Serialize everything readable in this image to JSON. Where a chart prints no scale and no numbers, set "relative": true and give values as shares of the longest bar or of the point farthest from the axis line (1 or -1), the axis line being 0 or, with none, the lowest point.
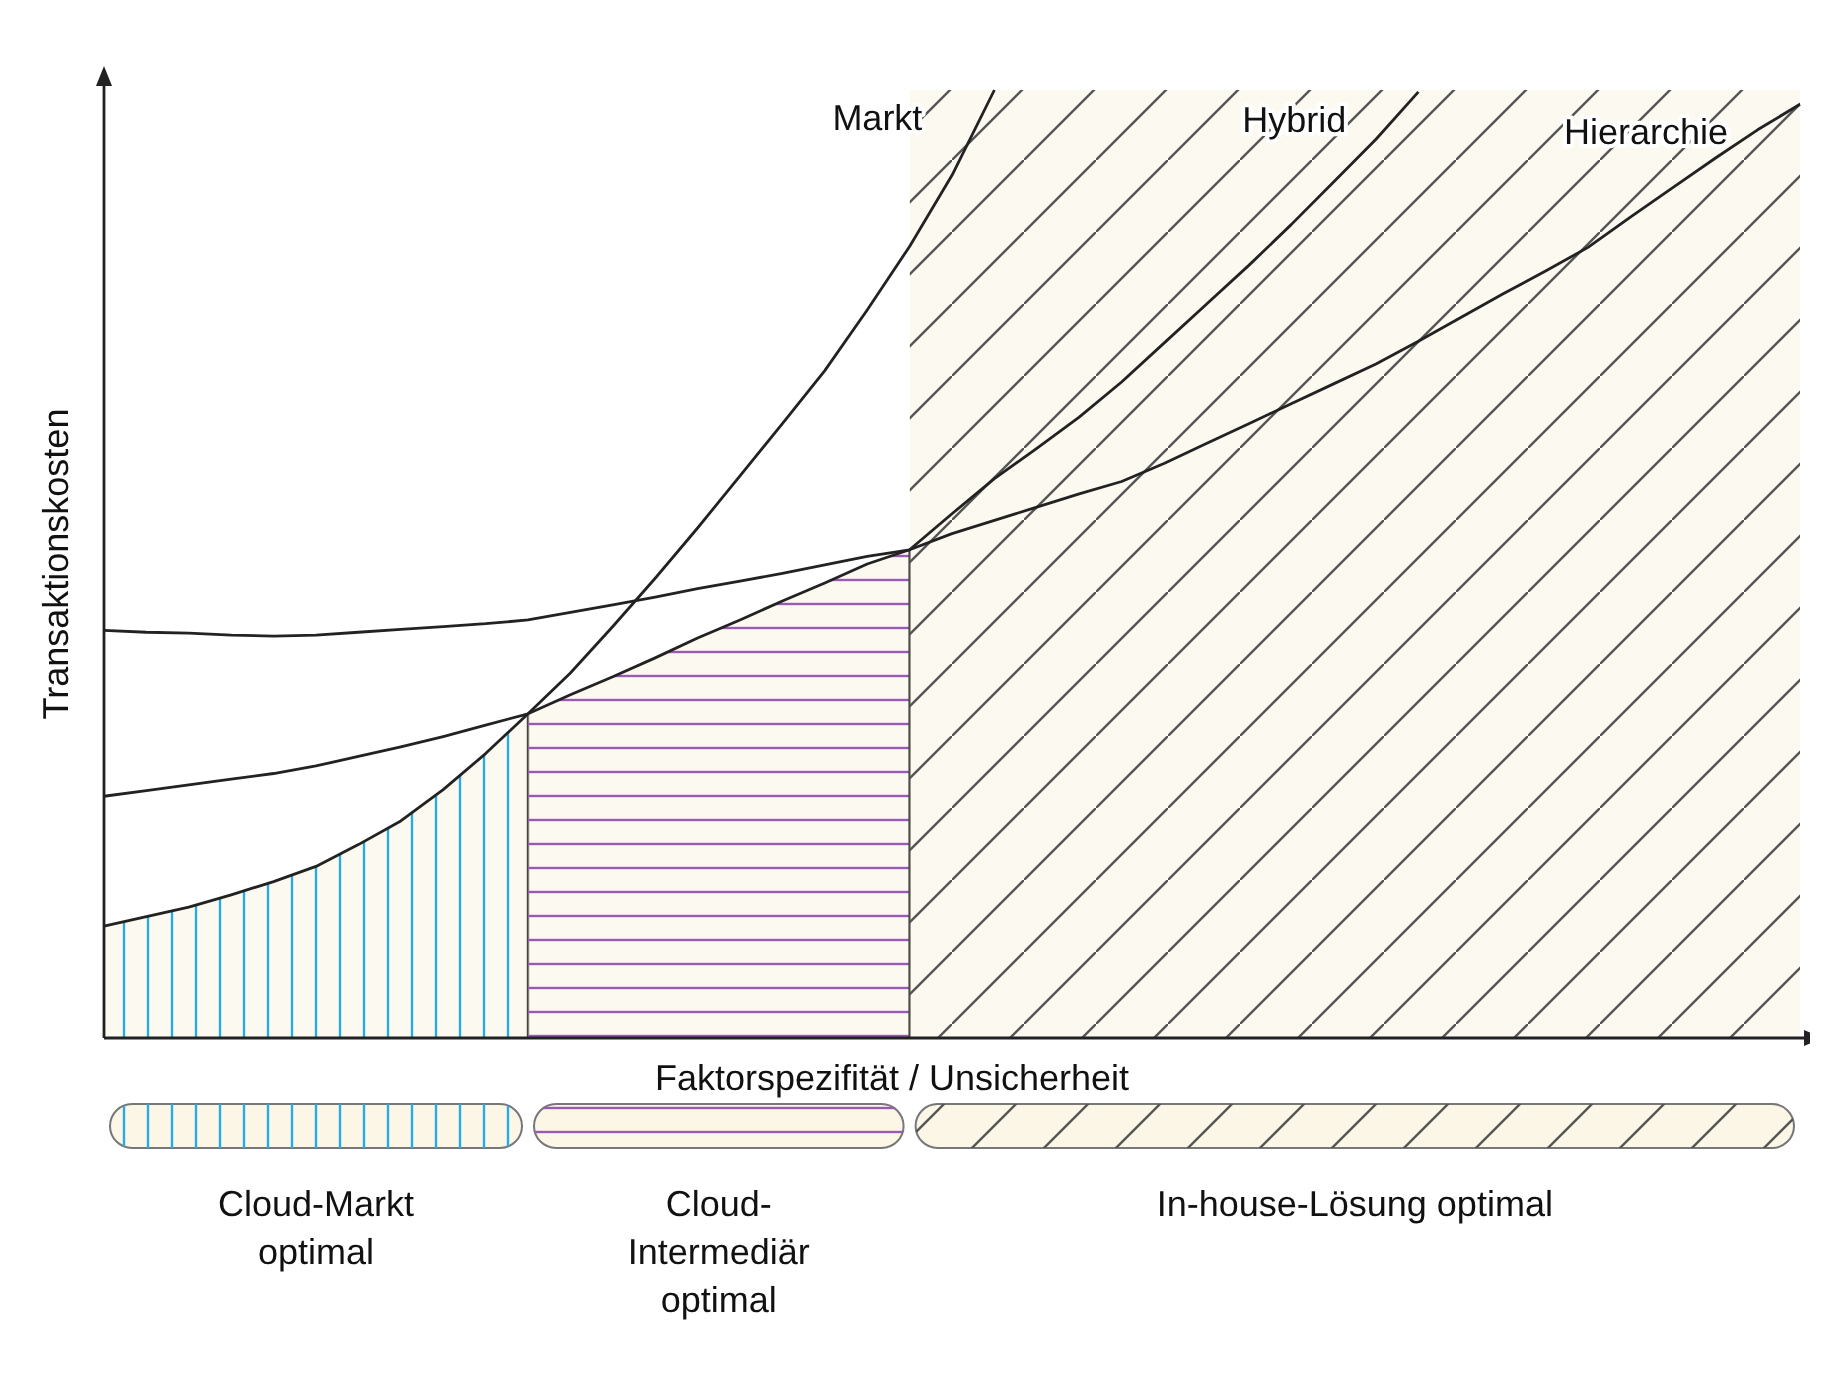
{
  "chart_data": {
    "type": "line",
    "xlabel": "Faktorspezifität / Unsicherheit",
    "ylabel": "Transaktionskosten",
    "relative": true,
    "marker": "none",
    "line_style": "solid",
    "categories": [
      null,
      null,
      null,
      null,
      null,
      null,
      null,
      null,
      null,
      null,
      null,
      null,
      null,
      null,
      null,
      null,
      null,
      null,
      null,
      null,
      null,
      null,
      null,
      null,
      null,
      null,
      null,
      null,
      null,
      null,
      null,
      null,
      null,
      null,
      null,
      null,
      null,
      null,
      null,
      null,
      null
    ],
    "series": [
      {
        "name": "Markt",
        "color": "#222222",
        "values": [
          0.118,
          0.128,
          0.138,
          0.151,
          0.165,
          0.181,
          0.204,
          0.229,
          0.262,
          0.3,
          0.342,
          0.385,
          0.434,
          0.485,
          0.538,
          0.593,
          0.648,
          0.704,
          0.768,
          0.835,
          0.91,
          1,
          null,
          null,
          null,
          null,
          null,
          null,
          null,
          null,
          null,
          null,
          null,
          null,
          null,
          null,
          null,
          null,
          null,
          null,
          null
        ]
      },
      {
        "name": "Hybrid",
        "color": "#222222",
        "values": [
          0.255,
          0.261,
          0.267,
          0.273,
          0.279,
          0.287,
          0.297,
          0.307,
          0.318,
          0.33,
          0.342,
          0.362,
          0.381,
          0.401,
          0.422,
          0.441,
          0.461,
          0.48,
          0.5,
          0.515,
          0.553,
          0.59,
          0.622,
          0.655,
          0.692,
          0.733,
          0.774,
          0.815,
          0.858,
          0.903,
          0.948,
          0.998,
          null,
          null,
          null,
          null,
          null,
          null,
          null,
          null,
          null
        ]
      },
      {
        "name": "Hierarchie",
        "color": "#222222",
        "values": [
          0.43,
          0.428,
          0.427,
          0.425,
          0.424,
          0.425,
          0.428,
          0.431,
          0.434,
          0.437,
          0.441,
          0.449,
          0.457,
          0.465,
          0.474,
          0.482,
          0.49,
          0.499,
          0.508,
          0.515,
          0.532,
          0.546,
          0.56,
          0.574,
          0.587,
          0.606,
          0.627,
          0.648,
          0.669,
          0.69,
          0.711,
          0.735,
          0.76,
          0.785,
          0.809,
          0.834,
          0.866,
          0.897,
          0.928,
          0.958,
          0.985
        ]
      }
    ],
    "annotations": [
      "Cloud-Markt optimal",
      "Cloud-Intermediär optimal",
      "In-house-Lösung optimal"
    ]
  }
}
